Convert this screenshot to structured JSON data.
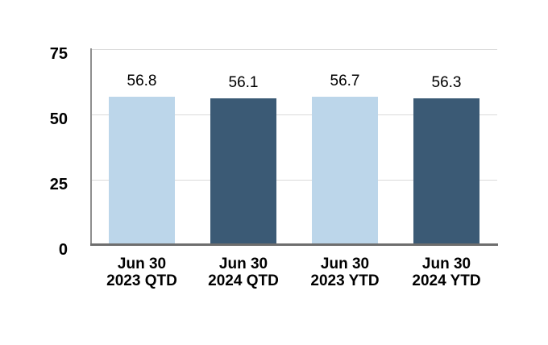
{
  "chart_data": {
    "type": "bar",
    "title": "",
    "xlabel": "",
    "ylabel": "",
    "categories": [
      "Jun 30 2023 QTD",
      "Jun 30 2024 QTD",
      "Jun 30 2023 YTD",
      "Jun 30 2024 YTD"
    ],
    "category_display": [
      [
        "Jun 30",
        "2023 QTD"
      ],
      [
        "Jun 30",
        "2024 QTD"
      ],
      [
        "Jun 30",
        "2023 YTD"
      ],
      [
        "Jun 30",
        "2024 YTD"
      ]
    ],
    "values": [
      56.8,
      56.1,
      56.7,
      56.3
    ],
    "value_labels": [
      "56.8",
      "56.1",
      "56.7",
      "56.3"
    ],
    "series_colors": [
      "#BCD6EA",
      "#3B5A75",
      "#BCD6EA",
      "#3B5A75"
    ],
    "ylim": [
      0,
      75
    ],
    "yticks": [
      0,
      25,
      50,
      75
    ],
    "ytick_labels": [
      "0",
      "25",
      "50",
      "75"
    ],
    "grid": true,
    "legend": "none"
  },
  "style": {
    "light_bar_color": "#BCD6EA",
    "dark_bar_color": "#3B5A75",
    "gridline_color": "#DADADA",
    "y_axis_color": "#8F8F8F",
    "x_axis_color": "#6E6E6E",
    "text_color": "#000000",
    "background_color": "#FFFFFF"
  }
}
